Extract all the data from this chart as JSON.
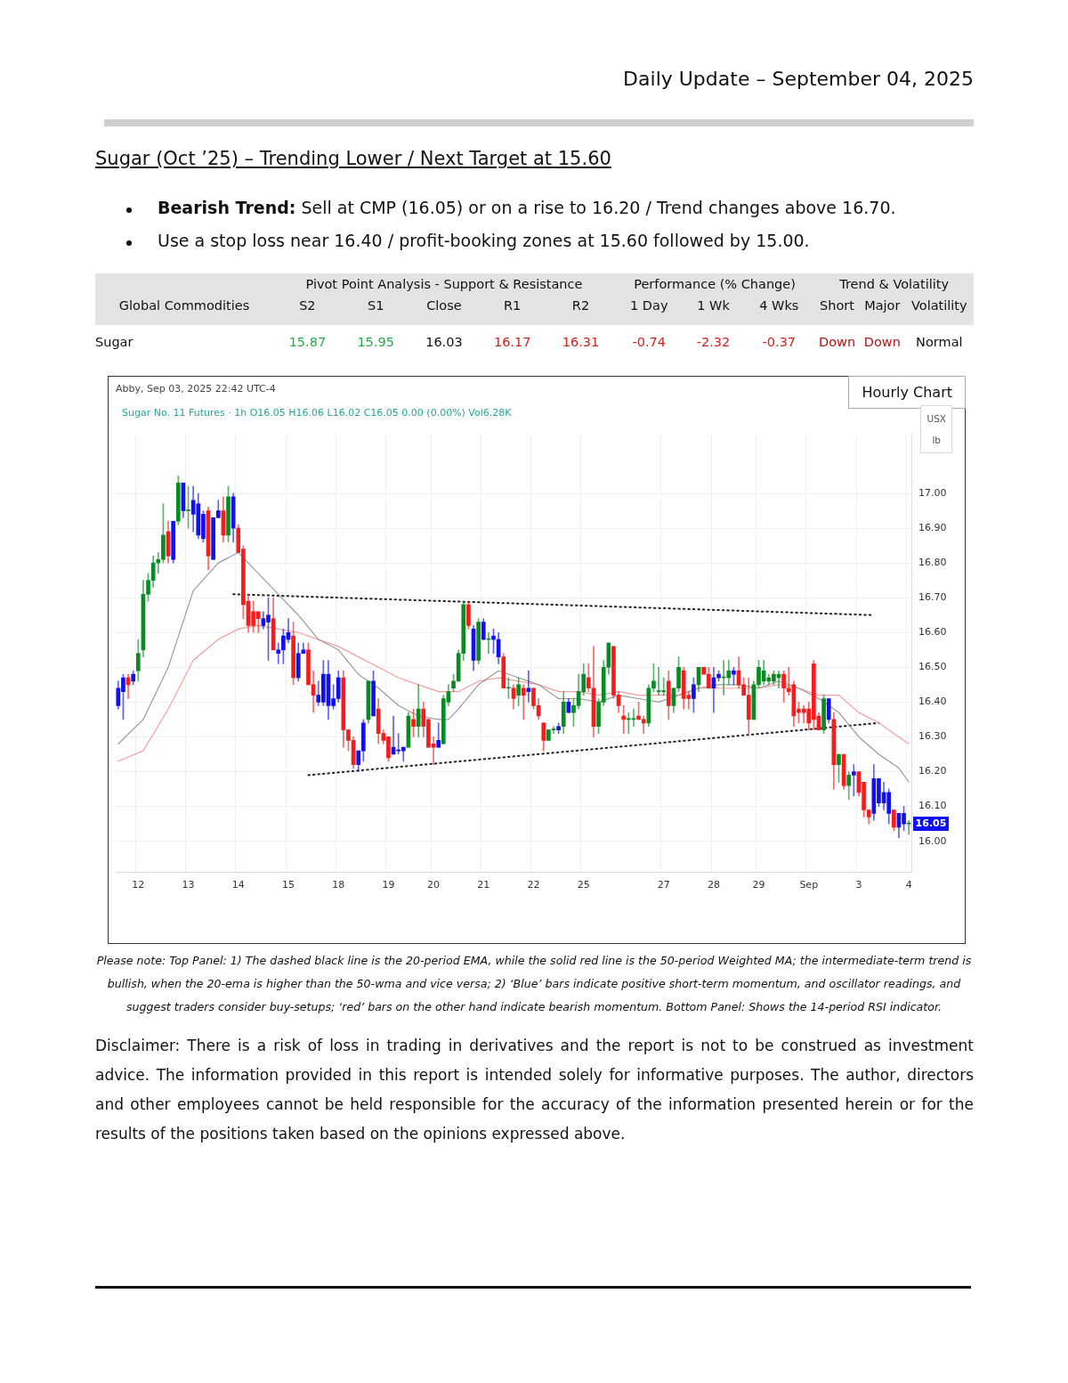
{
  "chart_data": [
    {
      "type": "other",
      "title": "Sugar (Oct ’25) – Trending Lower / Next Target at 15.60",
      "annotations": [
        "Daily Update – September 04, 2025",
        "Bearish Trend: Sell at CMP (16.05) or on a rise to 16.20 / Trend changes above 16.70.",
        "Use a stop loss near 16.40 / profit-booking zones at 15.60 followed by 15.00.",
        "Pivot Point Analysis - Support & Resistance",
        "Performance (% Change)",
        "Trend & Volatility",
        "Global Commodities",
        "S2",
        "S1",
        "Close",
        "R1",
        "R2",
        "1 Day",
        "1 Wk",
        "4 Wks",
        "Short",
        "Major",
        "Volatility",
        "Sugar",
        "15.87",
        "15.95",
        "16.03",
        "16.17",
        "16.31",
        "-0.74",
        "-2.32",
        "-0.37",
        "Down",
        "Down",
        "Normal"
      ]
    },
    {
      "type": "candlestick",
      "title": "Hourly Chart",
      "subtitle": "Sugar No. 11 Futures · 1h  O16.05  H16.06  L16.02  C16.05  0.00 (0.00%)  Vol6.28K",
      "ylabel": "USX lb",
      "grid": true,
      "annotations": [
        "Abby, Sep 03, 2025 22:42 UTC-4",
        "Please note: Top Panel: 1) The dashed black line is the 20-period EMA, while the solid red line is the 50-period Weighted MA; the intermediate-term trend is bullish, when the 20-ema is higher than the 50-wma and vice versa; 2)  ‘Blue’  bars indicate positive short-term momentum, and oscillator readings, and suggest traders consider buy-setups;  ‘red’  bars on the other hand indicate bearish momentum. Bottom Panel: Shows the 14-period RSI indicator.",
        "Disclaimer: There is a risk of loss in trading in derivatives and the report is not to be construed as investment advice. The information provided in this report is intended solely for informative purposes. The author, directors and other employees cannot be held responsible for the accuracy of the information presented herein or for the results of the positions taken based on the opinions expressed above.",
        {
          "text": "16.05",
          "y": 16.05
        }
      ],
      "ylim": [
        15.91,
        17.17
      ],
      "yticks": [
        {
          "value": 16,
          "label": "16.00"
        },
        {
          "value": 16.1,
          "label": "16.10"
        },
        {
          "value": 16.2,
          "label": "16.20"
        },
        {
          "value": 16.3,
          "label": "16.30"
        },
        {
          "value": 16.4,
          "label": "16.40"
        },
        {
          "value": 16.5,
          "label": "16.50"
        },
        {
          "value": 16.6,
          "label": "16.60"
        },
        {
          "value": 16.7,
          "label": "16.70"
        },
        {
          "value": 16.8,
          "label": "16.80"
        },
        {
          "value": 16.9,
          "label": "16.90"
        },
        {
          "value": 17,
          "label": "17.00"
        }
      ],
      "categories": [
        null,
        null,
        null,
        null,
        "12",
        null,
        null,
        null,
        null,
        null,
        null,
        null,
        null,
        null,
        "13",
        null,
        null,
        null,
        null,
        null,
        null,
        null,
        null,
        null,
        "14",
        null,
        null,
        null,
        null,
        null,
        null,
        null,
        null,
        null,
        "15",
        null,
        null,
        null,
        null,
        null,
        null,
        null,
        null,
        null,
        "18",
        null,
        null,
        null,
        null,
        null,
        null,
        null,
        null,
        null,
        "19",
        null,
        null,
        null,
        null,
        null,
        null,
        null,
        null,
        "20",
        null,
        null,
        null,
        null,
        null,
        null,
        null,
        null,
        null,
        "21",
        null,
        null,
        null,
        null,
        null,
        null,
        null,
        null,
        null,
        "22",
        null,
        null,
        null,
        null,
        null,
        null,
        null,
        null,
        null,
        "25",
        null,
        null,
        null,
        null,
        null,
        null,
        null,
        null,
        null,
        null,
        null,
        null,
        null,
        null,
        null,
        "27",
        null,
        null,
        null,
        null,
        null,
        null,
        null,
        null,
        null,
        "28",
        null,
        null,
        null,
        null,
        null,
        null,
        null,
        null,
        "29",
        null,
        null,
        null,
        null,
        null,
        null,
        null,
        null,
        null,
        "Sep",
        null,
        null,
        null,
        null,
        null,
        null,
        null,
        null,
        null,
        "3",
        null,
        null,
        null,
        null,
        null,
        null,
        null,
        null,
        null,
        "4"
      ],
      "ohlc": [
        [
          16.39,
          16.46,
          16.38,
          16.44
        ],
        [
          16.43,
          16.48,
          16.35,
          16.47
        ],
        [
          16.47,
          16.48,
          16.41,
          16.45
        ],
        [
          16.46,
          16.49,
          16.45,
          16.48
        ],
        [
          16.49,
          16.58,
          16.46,
          16.54
        ],
        [
          16.55,
          16.75,
          16.53,
          16.71
        ],
        [
          16.71,
          16.77,
          16.69,
          16.75
        ],
        [
          16.75,
          16.82,
          16.73,
          16.8
        ],
        [
          16.8,
          16.83,
          16.77,
          16.81
        ],
        [
          16.81,
          16.97,
          16.8,
          16.88
        ],
        [
          16.89,
          16.92,
          16.8,
          16.82
        ],
        [
          16.81,
          16.92,
          16.8,
          16.92
        ],
        [
          16.92,
          17.05,
          16.91,
          17.03
        ],
        [
          17.03,
          17.03,
          16.93,
          16.95
        ],
        [
          16.95,
          17.02,
          16.9,
          16.95
        ],
        [
          16.98,
          17.02,
          16.89,
          16.94
        ],
        [
          16.97,
          17.0,
          16.87,
          16.88
        ],
        [
          16.94,
          16.95,
          16.86,
          16.87
        ],
        [
          16.95,
          16.96,
          16.78,
          16.82
        ],
        [
          16.93,
          16.93,
          16.81,
          16.81
        ],
        [
          16.93,
          16.98,
          16.93,
          16.95
        ],
        [
          16.95,
          16.99,
          16.86,
          16.88
        ],
        [
          16.88,
          17.02,
          16.86,
          16.99
        ],
        [
          16.99,
          17.0,
          16.86,
          16.9
        ],
        [
          16.9,
          16.91,
          16.83,
          16.83
        ],
        [
          16.84,
          16.85,
          16.64,
          16.68
        ],
        [
          16.69,
          16.71,
          16.6,
          16.62
        ],
        [
          16.66,
          16.69,
          16.6,
          16.62
        ],
        [
          16.66,
          16.66,
          16.6,
          16.64
        ],
        [
          16.64,
          16.66,
          16.61,
          16.62
        ],
        [
          16.63,
          16.7,
          16.52,
          16.65
        ],
        [
          16.64,
          16.7,
          16.55,
          16.55
        ],
        [
          16.55,
          16.57,
          16.51,
          16.54
        ],
        [
          16.55,
          16.61,
          16.51,
          16.59
        ],
        [
          16.58,
          16.64,
          16.57,
          16.6
        ],
        [
          16.59,
          16.63,
          16.45,
          16.47
        ],
        [
          16.47,
          16.57,
          16.46,
          16.54
        ],
        [
          16.54,
          16.57,
          16.54,
          16.55
        ],
        [
          16.55,
          16.57,
          16.45,
          16.45
        ],
        [
          16.45,
          16.49,
          16.37,
          16.42
        ],
        [
          16.42,
          16.46,
          16.39,
          16.4
        ],
        [
          16.4,
          16.52,
          16.39,
          16.48
        ],
        [
          16.48,
          16.52,
          16.35,
          16.39
        ],
        [
          16.39,
          16.45,
          16.38,
          16.41
        ],
        [
          16.41,
          16.49,
          16.4,
          16.47
        ],
        [
          16.47,
          16.49,
          16.27,
          16.32
        ],
        [
          16.32,
          16.32,
          16.26,
          16.29
        ],
        [
          16.29,
          16.3,
          16.21,
          16.22
        ],
        [
          16.22,
          16.26,
          16.2,
          16.26
        ],
        [
          16.26,
          16.35,
          16.23,
          16.34
        ],
        [
          16.35,
          16.46,
          16.34,
          16.46
        ],
        [
          16.46,
          16.49,
          16.36,
          16.36
        ],
        [
          16.38,
          16.41,
          16.28,
          16.31
        ],
        [
          16.31,
          16.32,
          16.28,
          16.29
        ],
        [
          16.3,
          16.3,
          16.23,
          16.24
        ],
        [
          16.25,
          16.36,
          16.25,
          16.27
        ],
        [
          16.26,
          16.31,
          16.25,
          16.26
        ],
        [
          16.26,
          16.27,
          16.23,
          16.27
        ],
        [
          16.27,
          16.37,
          16.27,
          16.36
        ],
        [
          16.35,
          16.38,
          16.3,
          16.33
        ],
        [
          16.33,
          16.45,
          16.3,
          16.38
        ],
        [
          16.38,
          16.4,
          16.3,
          16.33
        ],
        [
          16.35,
          16.35,
          16.27,
          16.27
        ],
        [
          16.28,
          16.3,
          16.22,
          16.27
        ],
        [
          16.27,
          16.34,
          16.27,
          16.29
        ],
        [
          16.28,
          16.42,
          16.28,
          16.41
        ],
        [
          16.4,
          16.45,
          16.39,
          16.43
        ],
        [
          16.44,
          16.48,
          16.43,
          16.46
        ],
        [
          16.46,
          16.55,
          16.46,
          16.54
        ],
        [
          16.54,
          16.69,
          16.52,
          16.68
        ],
        [
          16.68,
          16.69,
          16.61,
          16.62
        ],
        [
          16.61,
          16.62,
          16.49,
          16.52
        ],
        [
          16.52,
          16.64,
          16.51,
          16.63
        ],
        [
          16.63,
          16.64,
          16.58,
          16.58
        ],
        [
          16.58,
          16.6,
          16.54,
          16.58
        ],
        [
          16.59,
          16.61,
          16.54,
          16.58
        ],
        [
          16.58,
          16.6,
          16.51,
          16.53
        ],
        [
          16.53,
          16.54,
          16.44,
          16.44
        ],
        [
          16.44,
          16.47,
          16.41,
          16.44
        ],
        [
          16.44,
          16.45,
          16.38,
          16.41
        ],
        [
          16.42,
          16.47,
          16.39,
          16.45
        ],
        [
          16.44,
          16.45,
          16.35,
          16.42
        ],
        [
          16.44,
          16.49,
          16.4,
          16.43
        ],
        [
          16.44,
          16.44,
          16.38,
          16.39
        ],
        [
          16.39,
          16.41,
          16.35,
          16.36
        ],
        [
          16.34,
          16.34,
          16.26,
          16.29
        ],
        [
          16.29,
          16.32,
          16.29,
          16.32
        ],
        [
          16.32,
          16.33,
          16.31,
          16.32
        ],
        [
          16.32,
          16.34,
          16.31,
          16.33
        ],
        [
          16.33,
          16.43,
          16.31,
          16.4
        ],
        [
          16.4,
          16.41,
          16.37,
          16.37
        ],
        [
          16.37,
          16.41,
          16.33,
          16.39
        ],
        [
          16.39,
          16.48,
          16.38,
          16.43
        ],
        [
          16.43,
          16.51,
          16.42,
          16.48
        ],
        [
          16.47,
          16.51,
          16.43,
          16.44
        ],
        [
          16.44,
          16.56,
          16.3,
          16.33
        ],
        [
          16.33,
          16.41,
          16.31,
          16.4
        ],
        [
          16.4,
          16.52,
          16.39,
          16.5
        ],
        [
          16.5,
          16.57,
          16.48,
          16.57
        ],
        [
          16.56,
          16.56,
          16.41,
          16.42
        ],
        [
          16.42,
          16.43,
          16.37,
          16.39
        ],
        [
          16.36,
          16.39,
          16.31,
          16.35
        ],
        [
          16.35,
          16.37,
          16.31,
          16.35
        ],
        [
          16.35,
          16.38,
          16.33,
          16.35
        ],
        [
          16.36,
          16.4,
          16.35,
          16.35
        ],
        [
          16.35,
          16.36,
          16.31,
          16.34
        ],
        [
          16.34,
          16.45,
          16.33,
          16.44
        ],
        [
          16.44,
          16.51,
          16.43,
          16.46
        ],
        [
          16.43,
          16.5,
          16.42,
          16.43
        ],
        [
          16.43,
          16.47,
          16.42,
          16.43
        ],
        [
          16.46,
          16.49,
          16.35,
          16.39
        ],
        [
          16.39,
          16.44,
          16.37,
          16.44
        ],
        [
          16.44,
          16.53,
          16.43,
          16.5
        ],
        [
          16.49,
          16.5,
          16.38,
          16.41
        ],
        [
          16.42,
          16.43,
          16.38,
          16.41
        ],
        [
          16.41,
          16.47,
          16.37,
          16.45
        ],
        [
          16.45,
          16.5,
          16.43,
          16.5
        ],
        [
          16.5,
          16.5,
          16.48,
          16.48
        ],
        [
          16.48,
          16.5,
          16.44,
          16.44
        ],
        [
          16.44,
          16.5,
          16.37,
          16.47
        ],
        [
          16.47,
          16.49,
          16.46,
          16.48
        ],
        [
          16.47,
          16.52,
          16.42,
          16.47
        ],
        [
          16.47,
          16.52,
          16.45,
          16.49
        ],
        [
          16.49,
          16.5,
          16.45,
          16.48
        ],
        [
          16.49,
          16.53,
          16.44,
          16.45
        ],
        [
          16.45,
          16.47,
          16.42,
          16.42
        ],
        [
          16.42,
          16.47,
          16.31,
          16.35
        ],
        [
          16.35,
          16.46,
          16.35,
          16.45
        ],
        [
          16.45,
          16.52,
          16.44,
          16.5
        ],
        [
          16.46,
          16.52,
          16.45,
          16.49
        ],
        [
          16.46,
          16.48,
          16.45,
          16.47
        ],
        [
          16.46,
          16.49,
          16.45,
          16.48
        ],
        [
          16.47,
          16.49,
          16.44,
          16.48
        ],
        [
          16.48,
          16.49,
          16.4,
          16.44
        ],
        [
          16.44,
          16.5,
          16.42,
          16.43
        ],
        [
          16.45,
          16.46,
          16.33,
          16.36
        ],
        [
          16.38,
          16.4,
          16.34,
          16.37
        ],
        [
          16.38,
          16.39,
          16.34,
          16.37
        ],
        [
          16.38,
          16.4,
          16.32,
          16.34
        ],
        [
          16.51,
          16.52,
          16.32,
          16.35
        ],
        [
          16.36,
          16.37,
          16.32,
          16.32
        ],
        [
          16.32,
          16.42,
          16.31,
          16.41
        ],
        [
          16.41,
          16.41,
          16.34,
          16.35
        ],
        [
          16.35,
          16.37,
          16.15,
          16.22
        ],
        [
          16.22,
          16.25,
          16.17,
          16.25
        ],
        [
          16.25,
          16.25,
          16.15,
          16.16
        ],
        [
          16.16,
          16.2,
          16.12,
          16.19
        ],
        [
          16.19,
          16.22,
          16.13,
          16.2
        ],
        [
          16.2,
          16.2,
          16.13,
          16.14
        ],
        [
          16.17,
          16.17,
          16.07,
          16.09
        ],
        [
          16.09,
          16.09,
          16.05,
          16.07
        ],
        [
          16.08,
          16.22,
          16.06,
          16.18
        ],
        [
          16.18,
          16.18,
          16.1,
          16.11
        ],
        [
          16.11,
          16.17,
          16.09,
          16.14
        ],
        [
          16.14,
          16.15,
          16.05,
          16.08
        ],
        [
          16.09,
          16.09,
          16.03,
          16.04
        ],
        [
          16.04,
          16.08,
          16.01,
          16.08
        ],
        [
          16.08,
          16.1,
          16.03,
          16.05
        ],
        [
          16.05,
          16.06,
          16.02,
          16.05
        ]
      ],
      "colors": [
        "#1010f0",
        "#1010f0",
        "#f71d1d",
        "#1010f0",
        "#0a8a23",
        "#0a8a23",
        "#0a8a23",
        "#0a8a23",
        "#0a8a23",
        "#0a8a23",
        "#f71d1d",
        "#1010f0",
        "#0a8a23",
        "#1010f0",
        "#0a8a23",
        "#1010f0",
        "#1010f0",
        "#1010f0",
        "#f71d1d",
        "#1010f0",
        "#1010f0",
        "#f71d1d",
        "#0a8a23",
        "#1010f0",
        "#f71d1d",
        "#f71d1d",
        "#f71d1d",
        "#f71d1d",
        "#f71d1d",
        "#1010f0",
        "#1010f0",
        "#f71d1d",
        "#1010f0",
        "#1010f0",
        "#1010f0",
        "#f71d1d",
        "#1010f0",
        "#1010f0",
        "#f71d1d",
        "#f71d1d",
        "#1010f0",
        "#1010f0",
        "#1010f0",
        "#1010f0",
        "#1010f0",
        "#f71d1d",
        "#f71d1d",
        "#f71d1d",
        "#1010f0",
        "#1010f0",
        "#0a8a23",
        "#1010f0",
        "#f71d1d",
        "#f71d1d",
        "#f71d1d",
        "#1010f0",
        "#1010f0",
        "#1010f0",
        "#0a8a23",
        "#f71d1d",
        "#0a8a23",
        "#f71d1d",
        "#f71d1d",
        "#f71d1d",
        "#1010f0",
        "#0a8a23",
        "#0a8a23",
        "#0a8a23",
        "#0a8a23",
        "#0a8a23",
        "#f71d1d",
        "#1010f0",
        "#0a8a23",
        "#1010f0",
        "#0a8a23",
        "#1010f0",
        "#1010f0",
        "#f71d1d",
        "#0a8a23",
        "#f71d1d",
        "#0a8a23",
        "#f71d1d",
        "#1010f0",
        "#f71d1d",
        "#f71d1d",
        "#f71d1d",
        "#0a8a23",
        "#0a8a23",
        "#1010f0",
        "#0a8a23",
        "#1010f0",
        "#0a8a23",
        "#0a8a23",
        "#0a8a23",
        "#f71d1d",
        "#f71d1d",
        "#0a8a23",
        "#0a8a23",
        "#0a8a23",
        "#f71d1d",
        "#f71d1d",
        "#f71d1d",
        "#0a8a23",
        "#0a8a23",
        "#f71d1d",
        "#f71d1d",
        "#0a8a23",
        "#0a8a23",
        "#0a8a23",
        "#0a8a23",
        "#f71d1d",
        "#0a8a23",
        "#0a8a23",
        "#f71d1d",
        "#f71d1d",
        "#1010f0",
        "#0a8a23",
        "#f71d1d",
        "#f71d1d",
        "#1010f0",
        "#1010f0",
        "#0a8a23",
        "#0a8a23",
        "#1010f0",
        "#f71d1d",
        "#f71d1d",
        "#f71d1d",
        "#0a8a23",
        "#0a8a23",
        "#0a8a23",
        "#0a8a23",
        "#0a8a23",
        "#0a8a23",
        "#f71d1d",
        "#f71d1d",
        "#f71d1d",
        "#f71d1d",
        "#f71d1d",
        "#f71d1d",
        "#f71d1d",
        "#f71d1d",
        "#0a8a23",
        "#1010f0",
        "#f71d1d",
        "#0a8a23",
        "#f71d1d",
        "#0a8a23",
        "#1010f0",
        "#f71d1d",
        "#f71d1d",
        "#f71d1d",
        "#1010f0",
        "#1010f0",
        "#1010f0",
        "#1010f0",
        "#f71d1d",
        "#1010f0",
        "#1010f0",
        "#0a8a23"
      ],
      "series": [
        {
          "type": "line",
          "color": "#9a9a9a",
          "line_style": "solid",
          "values": [
            16.28,
            null,
            null,
            null,
            null,
            16.35,
            null,
            null,
            null,
            null,
            16.5,
            null,
            null,
            null,
            null,
            16.72,
            null,
            null,
            null,
            null,
            16.8,
            null,
            null,
            null,
            16.83,
            null,
            null,
            null,
            16.77,
            null,
            null,
            null,
            16.71,
            null,
            null,
            null,
            16.65,
            null,
            null,
            null,
            16.58,
            null,
            null,
            null,
            16.55,
            null,
            null,
            null,
            16.48,
            null,
            null,
            null,
            16.44,
            null,
            null,
            null,
            16.39,
            null,
            null,
            null,
            16.36,
            null,
            null,
            null,
            16.35,
            null,
            16.35,
            null,
            16.38,
            null,
            null,
            null,
            16.45,
            null,
            null,
            null,
            16.49,
            null,
            null,
            null,
            16.47,
            null,
            null,
            null,
            16.45,
            null,
            null,
            null,
            16.41,
            null,
            null,
            null,
            16.41,
            null,
            null,
            null,
            16.4,
            null,
            null,
            null,
            16.42,
            null,
            null,
            null,
            16.41,
            null,
            null,
            null,
            16.4,
            null,
            null,
            null,
            16.42,
            null,
            null,
            null,
            16.44,
            null,
            null,
            null,
            16.45,
            null,
            null,
            null,
            16.45,
            null,
            null,
            null,
            16.44,
            null,
            null,
            null,
            16.46,
            null,
            null,
            null,
            16.44,
            null,
            null,
            null,
            16.41,
            null,
            null,
            null,
            16.37,
            null,
            null,
            null,
            16.3,
            null,
            null,
            null,
            16.25,
            null,
            null,
            null,
            16.21,
            null,
            16.17
          ]
        },
        {
          "type": "line",
          "color": "#f4a0a0",
          "line_style": "solid",
          "values": [
            16.23,
            null,
            null,
            null,
            null,
            16.26,
            null,
            null,
            null,
            null,
            16.38,
            null,
            null,
            null,
            null,
            16.52,
            null,
            null,
            null,
            null,
            16.58,
            null,
            null,
            null,
            16.61,
            null,
            null,
            null,
            16.62,
            null,
            null,
            null,
            16.61,
            null,
            null,
            null,
            16.6,
            null,
            null,
            null,
            16.58,
            null,
            null,
            null,
            16.56,
            null,
            null,
            null,
            16.53,
            null,
            null,
            null,
            16.5,
            null,
            null,
            null,
            16.47,
            null,
            null,
            null,
            16.45,
            null,
            null,
            null,
            16.43,
            null,
            null,
            null,
            16.43,
            null,
            null,
            null,
            16.46,
            null,
            null,
            null,
            16.47,
            null,
            null,
            null,
            16.46,
            null,
            null,
            null,
            16.45,
            null,
            null,
            null,
            16.43,
            null,
            null,
            null,
            16.43,
            null,
            null,
            null,
            16.42,
            null,
            null,
            null,
            16.43,
            null,
            null,
            null,
            16.42,
            null,
            null,
            null,
            16.42,
            null,
            null,
            null,
            16.42,
            null,
            null,
            null,
            16.44,
            null,
            null,
            null,
            16.44,
            null,
            null,
            null,
            16.44,
            null,
            null,
            null,
            16.44,
            null,
            null,
            null,
            16.45,
            null,
            null,
            null,
            16.44,
            null,
            null,
            null,
            16.42,
            null,
            null,
            null,
            16.42,
            null,
            null,
            null,
            16.37,
            null,
            null,
            null,
            16.34,
            null,
            null,
            null,
            16.3,
            null,
            16.28
          ]
        },
        {
          "type": "line",
          "color": "#222222",
          "line_style": "dotted",
          "values": [
            null,
            null,
            null,
            null,
            null,
            null,
            null,
            null,
            null,
            null,
            null,
            null,
            null,
            null,
            null,
            null,
            null,
            null,
            null,
            null,
            null,
            null,
            null,
            16.71,
            null,
            null,
            null,
            null,
            null,
            null,
            null,
            null,
            null,
            null,
            null,
            null,
            null,
            null,
            null,
            null,
            null,
            null,
            null,
            null,
            null,
            null,
            null,
            null,
            null,
            null,
            null,
            null,
            null,
            null,
            null,
            null,
            null,
            null,
            null,
            null,
            null,
            null,
            null,
            null,
            null,
            null,
            null,
            null,
            null,
            null,
            null,
            null,
            null,
            null,
            null,
            null,
            null,
            null,
            null,
            null,
            null,
            null,
            null,
            null,
            null,
            null,
            null,
            null,
            null,
            null,
            null,
            null,
            null,
            null,
            null,
            null,
            null,
            null,
            null,
            null,
            null,
            null,
            null,
            null,
            null,
            null,
            null,
            null,
            null,
            null,
            null,
            null,
            null,
            null,
            null,
            null,
            null,
            null,
            null,
            null,
            null,
            null,
            null,
            null,
            null,
            null,
            null,
            null,
            null,
            null,
            null,
            null,
            null,
            null,
            null,
            null,
            null,
            null,
            null,
            null,
            null,
            null,
            null,
            null,
            null,
            null,
            null,
            null,
            null,
            null,
            null,
            16.65,
            null,
            null,
            null,
            null,
            null,
            null,
            null
          ]
        },
        {
          "type": "line",
          "color": "#222222",
          "line_style": "dotted",
          "values": [
            null,
            null,
            null,
            null,
            null,
            null,
            null,
            null,
            null,
            null,
            null,
            null,
            null,
            null,
            null,
            null,
            null,
            null,
            null,
            null,
            null,
            null,
            null,
            null,
            null,
            null,
            null,
            null,
            null,
            null,
            null,
            null,
            null,
            null,
            null,
            null,
            null,
            null,
            16.19,
            null,
            null,
            null,
            null,
            null,
            null,
            null,
            null,
            null,
            null,
            null,
            null,
            null,
            null,
            null,
            null,
            null,
            null,
            null,
            null,
            null,
            null,
            null,
            null,
            null,
            null,
            null,
            null,
            null,
            null,
            null,
            null,
            null,
            null,
            null,
            null,
            null,
            null,
            null,
            null,
            null,
            null,
            null,
            null,
            null,
            null,
            null,
            null,
            null,
            null,
            null,
            null,
            null,
            null,
            null,
            null,
            null,
            null,
            null,
            null,
            null,
            null,
            null,
            null,
            null,
            null,
            null,
            null,
            null,
            null,
            null,
            null,
            null,
            null,
            null,
            null,
            null,
            null,
            null,
            null,
            null,
            null,
            null,
            null,
            null,
            null,
            null,
            null,
            null,
            null,
            null,
            null,
            null,
            null,
            null,
            null,
            null,
            null,
            null,
            null,
            null,
            null,
            null,
            null,
            null,
            null,
            null,
            null,
            null,
            null,
            null,
            null,
            null,
            16.34,
            null,
            null,
            null,
            null,
            null,
            null
          ]
        }
      ]
    }
  ]
}
